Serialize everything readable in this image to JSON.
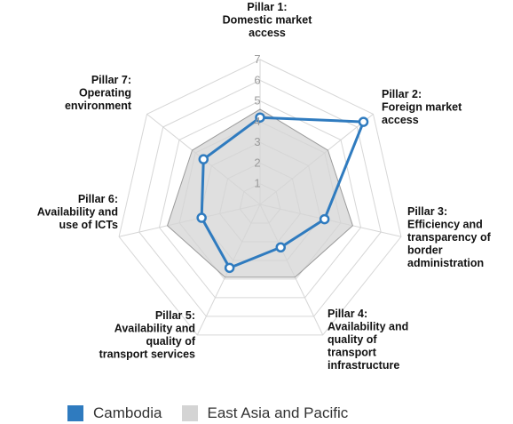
{
  "chart_data": {
    "type": "radar",
    "categories": [
      [
        "Pillar 1:",
        "Domestic market",
        "access"
      ],
      [
        "Pillar 2:",
        "Foreign market",
        "access"
      ],
      [
        "Pillar 3:",
        "Efficiency and",
        "transparency of",
        "border",
        "administration"
      ],
      [
        "Pillar 4:",
        "Availability and",
        "quality of",
        "transport",
        "infrastructure"
      ],
      [
        "Pillar 5:",
        "Availability and",
        "quality of",
        "transport services"
      ],
      [
        "Pillar 6:",
        "Availability and",
        "use of ICTs"
      ],
      [
        "Pillar 7:",
        "Operating",
        "environment"
      ]
    ],
    "rlim": [
      0,
      7
    ],
    "ticks": [
      1,
      2,
      3,
      4,
      5,
      6,
      7
    ],
    "grid": true,
    "legend_position": "bottom-left",
    "series": [
      {
        "name": "East Asia and Pacific",
        "values": [
          4.6,
          4.2,
          4.6,
          3.9,
          3.9,
          4.6,
          4.2
        ],
        "color": "#d4d4d4",
        "style": "filled-area"
      },
      {
        "name": "Cambodia",
        "values": [
          4.2,
          6.4,
          3.2,
          2.3,
          3.4,
          2.9,
          3.5
        ],
        "color": "#2f7bbf",
        "style": "line-with-markers"
      }
    ]
  },
  "legend": {
    "items": [
      {
        "label": "Cambodia",
        "color": "#2f7bbf"
      },
      {
        "label": "East Asia and Pacific",
        "color": "#d4d4d4"
      }
    ]
  }
}
